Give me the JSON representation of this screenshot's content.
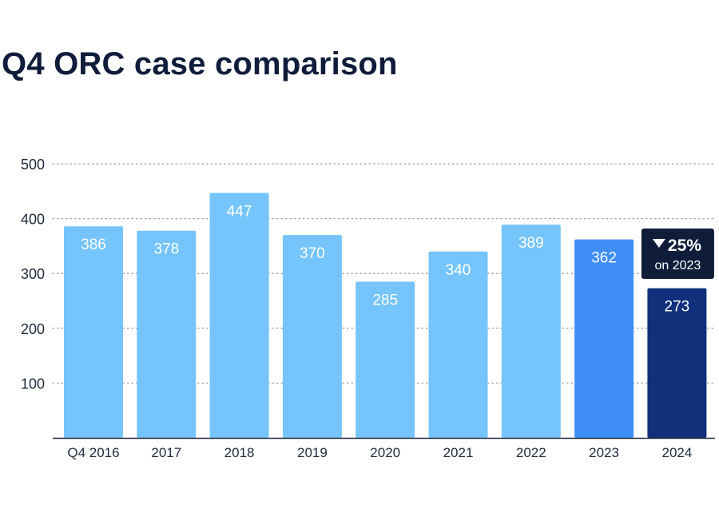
{
  "page_title": "Q4 ORC case comparison",
  "chart_data": {
    "type": "bar",
    "title": "Q4 ORC case comparison",
    "xlabel": "",
    "ylabel": "",
    "categories": [
      "Q4 2016",
      "2017",
      "2018",
      "2019",
      "2020",
      "2021",
      "2022",
      "2023",
      "2024"
    ],
    "values": [
      386,
      378,
      447,
      370,
      285,
      340,
      389,
      362,
      273
    ],
    "bar_colors": [
      "#75c4fb",
      "#75c4fb",
      "#75c4fb",
      "#75c4fb",
      "#75c4fb",
      "#75c4fb",
      "#75c4fb",
      "#3e8ef6",
      "#112f7a"
    ],
    "y_ticks": [
      100,
      200,
      300,
      400,
      500
    ],
    "ylim": [
      0,
      500
    ],
    "grid": "horizontal dotted",
    "annotation": {
      "category": "2024",
      "direction": "down",
      "arrow_icon": "triangle-down-icon",
      "value": "25%",
      "subtext": "on 2023",
      "background": "#0f1d3a"
    },
    "colors": {
      "text_dark": "#0f1d3a",
      "tick_text": "#1f2a3c",
      "grid": "#9aa3ad",
      "axis": "#1f2a3c"
    }
  }
}
